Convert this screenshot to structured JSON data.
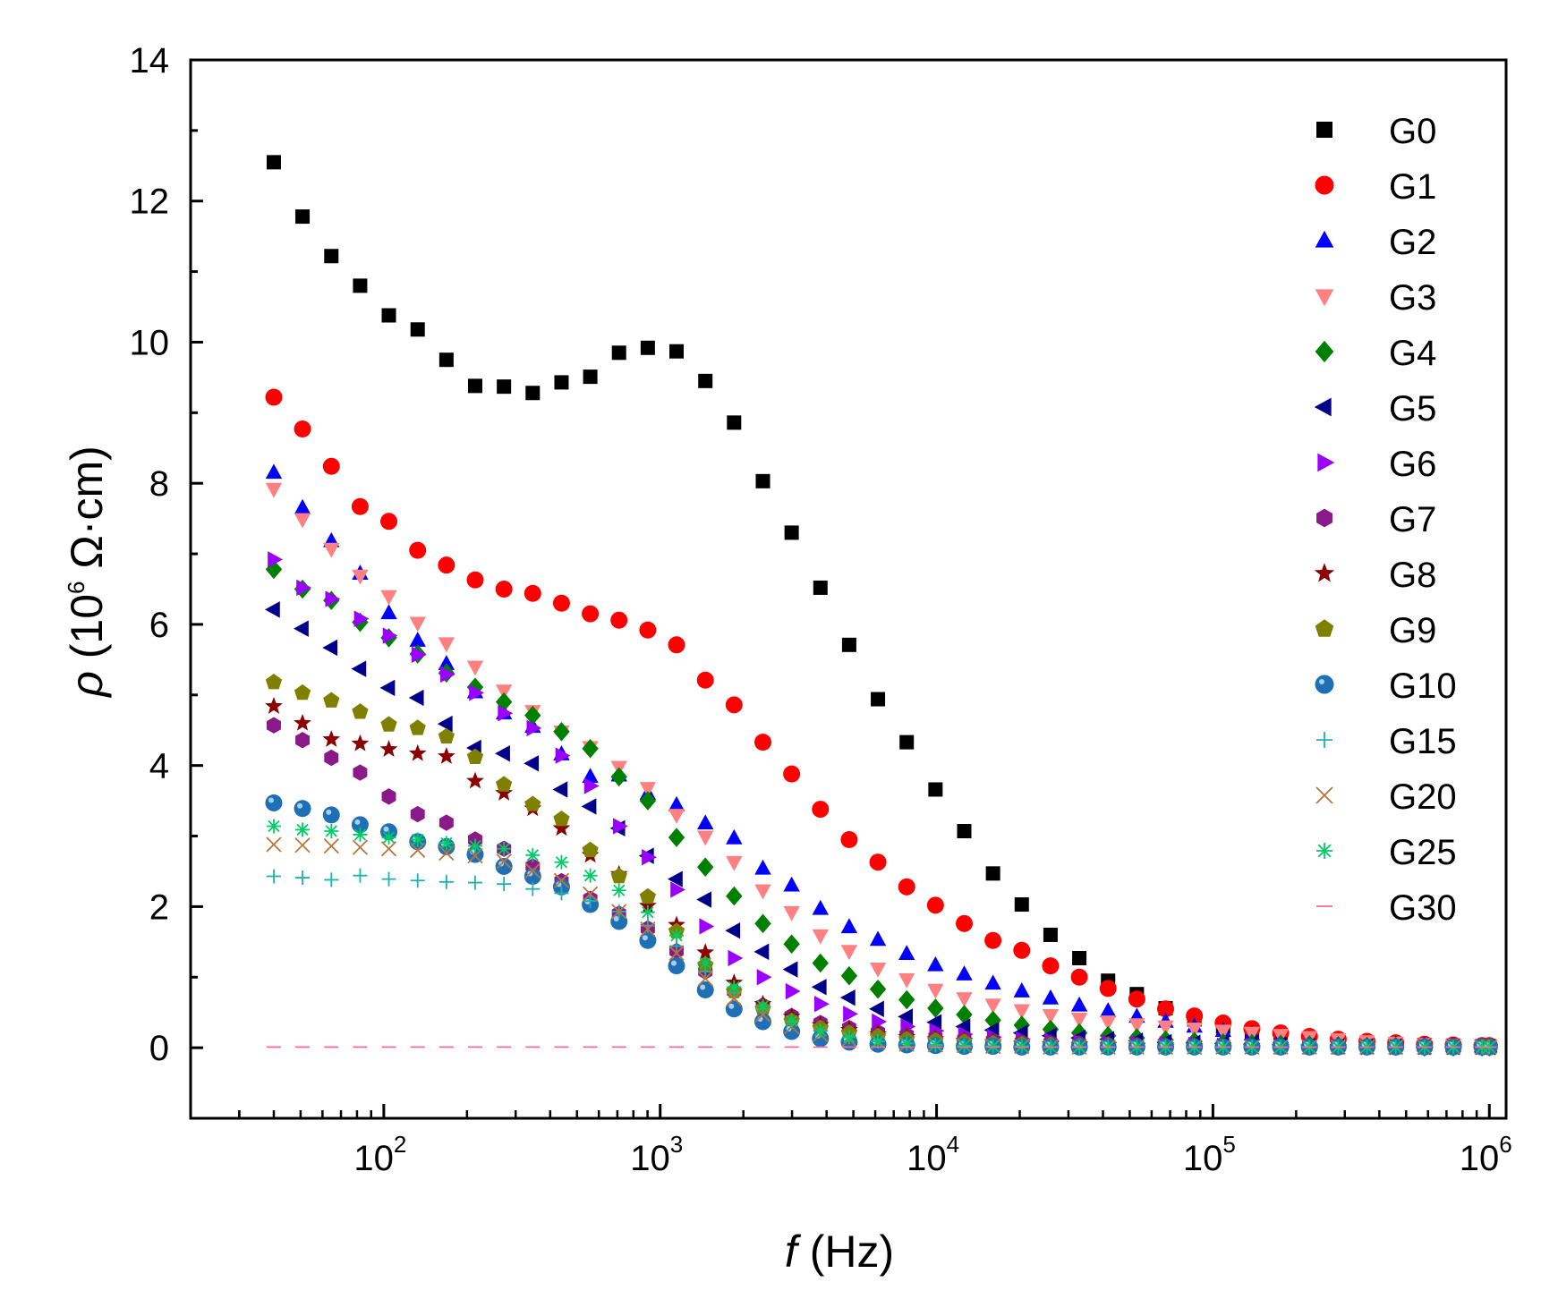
{
  "chart_data": {
    "type": "scatter",
    "title": "",
    "xlabel": {
      "symbol": "f",
      "unit": " (Hz)"
    },
    "ylabel": {
      "symbol": "ρ",
      "unit_pre": " (10",
      "unit_exp": "6",
      "unit_post": " Ω·cm)"
    },
    "x_scale": "log",
    "xlim": [
      20,
      1150000
    ],
    "ylim": [
      -1,
      14
    ],
    "y_ticks": [
      0,
      2,
      4,
      6,
      8,
      10,
      12,
      14
    ],
    "y_tick_labels": [
      "0",
      "2",
      "4",
      "6",
      "8",
      "10",
      "12",
      "14"
    ],
    "x_ticks": [
      {
        "value": 100,
        "base": "10",
        "exp": "2"
      },
      {
        "value": 1000,
        "base": "10",
        "exp": "3"
      },
      {
        "value": 10000,
        "base": "10",
        "exp": "4"
      },
      {
        "value": 100000,
        "base": "10",
        "exp": "5"
      },
      {
        "value": 1000000,
        "base": "10",
        "exp": "6"
      }
    ],
    "legend_position": "top-right",
    "x": [
      40,
      50.8,
      64.6,
      82.1,
      104.3,
      132.6,
      168.5,
      214.1,
      272.1,
      345.8,
      439.5,
      558.5,
      709.7,
      902,
      1146,
      1457,
      1851,
      2353,
      2990,
      3800,
      4829,
      6136,
      7798,
      9910,
      12594,
      16004,
      20338,
      25846,
      32845,
      41739,
      53042,
      67406,
      85660,
      108856,
      138334,
      175794,
      223400,
      283898,
      360775,
      458472,
      582626,
      740400,
      940900,
      1000000
    ],
    "series": [
      {
        "name": "G0",
        "color": "#000000",
        "marker": "square",
        "values": [
          12.55,
          11.78,
          11.22,
          10.8,
          10.38,
          10.18,
          9.75,
          9.38,
          9.37,
          9.28,
          9.43,
          9.51,
          9.85,
          9.92,
          9.87,
          9.45,
          8.86,
          8.03,
          7.3,
          6.52,
          5.71,
          4.94,
          4.33,
          3.66,
          3.07,
          2.47,
          2.03,
          1.6,
          1.27,
          0.95,
          0.76,
          0.56,
          0.4,
          0.3,
          0.22,
          0.16,
          0.12,
          0.09,
          0.07,
          0.05,
          0.04,
          0.03,
          0.02,
          0.02
        ]
      },
      {
        "name": "G1",
        "color": "#ff0000",
        "marker": "circle",
        "values": [
          9.22,
          8.77,
          8.24,
          7.67,
          7.46,
          7.05,
          6.84,
          6.63,
          6.5,
          6.44,
          6.3,
          6.15,
          6.06,
          5.92,
          5.71,
          5.21,
          4.86,
          4.33,
          3.88,
          3.38,
          2.95,
          2.63,
          2.28,
          2.02,
          1.76,
          1.52,
          1.38,
          1.16,
          1.0,
          0.84,
          0.69,
          0.55,
          0.45,
          0.35,
          0.27,
          0.21,
          0.16,
          0.12,
          0.09,
          0.07,
          0.05,
          0.04,
          0.03,
          0.03
        ]
      },
      {
        "name": "G2",
        "color": "#0000ff",
        "marker": "triangle-up",
        "values": [
          8.15,
          7.65,
          7.18,
          6.72,
          6.16,
          5.77,
          5.44,
          5.04,
          4.74,
          4.55,
          4.16,
          3.84,
          3.86,
          3.6,
          3.44,
          3.18,
          2.97,
          2.54,
          2.3,
          1.97,
          1.71,
          1.53,
          1.33,
          1.17,
          1.04,
          0.91,
          0.8,
          0.7,
          0.6,
          0.52,
          0.44,
          0.37,
          0.3,
          0.24,
          0.19,
          0.15,
          0.12,
          0.09,
          0.07,
          0.05,
          0.04,
          0.03,
          0.02,
          0.02
        ]
      },
      {
        "name": "G3",
        "color": "#ff8080",
        "marker": "triangle-down",
        "values": [
          7.92,
          7.49,
          7.07,
          6.69,
          6.4,
          6.02,
          5.73,
          5.4,
          5.06,
          4.77,
          4.48,
          4.26,
          3.98,
          3.68,
          3.3,
          2.99,
          2.63,
          2.23,
          1.92,
          1.59,
          1.37,
          1.12,
          0.97,
          0.82,
          0.7,
          0.61,
          0.53,
          0.46,
          0.41,
          0.37,
          0.33,
          0.3,
          0.27,
          0.24,
          0.21,
          0.18,
          0.15,
          0.12,
          0.09,
          0.07,
          0.05,
          0.04,
          0.03,
          0.03
        ]
      },
      {
        "name": "G4",
        "color": "#008000",
        "marker": "diamond",
        "values": [
          6.78,
          6.5,
          6.34,
          6.03,
          5.81,
          5.58,
          5.31,
          5.11,
          4.9,
          4.71,
          4.48,
          4.24,
          3.84,
          3.5,
          2.98,
          2.56,
          2.15,
          1.76,
          1.47,
          1.2,
          1.02,
          0.83,
          0.68,
          0.56,
          0.47,
          0.39,
          0.32,
          0.26,
          0.21,
          0.17,
          0.14,
          0.11,
          0.09,
          0.07,
          0.06,
          0.05,
          0.04,
          0.03,
          0.02,
          0.02,
          0.01,
          0.01,
          0.01,
          0.01
        ]
      },
      {
        "name": "G5",
        "color": "#00008b",
        "marker": "triangle-left",
        "values": [
          6.21,
          5.94,
          5.67,
          5.37,
          5.1,
          4.96,
          4.59,
          4.25,
          4.17,
          4.03,
          3.66,
          3.42,
          3.11,
          2.72,
          2.39,
          2.1,
          1.66,
          1.36,
          1.11,
          0.86,
          0.71,
          0.55,
          0.44,
          0.36,
          0.3,
          0.25,
          0.21,
          0.17,
          0.14,
          0.12,
          0.1,
          0.08,
          0.07,
          0.06,
          0.05,
          0.04,
          0.03,
          0.02,
          0.02,
          0.02,
          0.01,
          0.01,
          0.01,
          0.01
        ]
      },
      {
        "name": "G6",
        "color": "#9b00ff",
        "marker": "triangle-right",
        "values": [
          6.92,
          6.52,
          6.36,
          6.08,
          5.84,
          5.57,
          5.29,
          5.03,
          4.74,
          4.53,
          4.14,
          3.71,
          3.14,
          2.7,
          2.24,
          1.72,
          1.27,
          1.0,
          0.8,
          0.62,
          0.48,
          0.37,
          0.3,
          0.24,
          0.19,
          0.15,
          0.12,
          0.1,
          0.08,
          0.07,
          0.06,
          0.05,
          0.04,
          0.03,
          0.03,
          0.02,
          0.02,
          0.02,
          0.01,
          0.01,
          0.01,
          0.01,
          0.01,
          0.01
        ]
      },
      {
        "name": "G7",
        "color": "#8b1a89",
        "marker": "hexagon",
        "values": [
          4.57,
          4.36,
          4.11,
          3.9,
          3.56,
          3.31,
          3.19,
          2.95,
          2.82,
          2.57,
          2.36,
          2.11,
          1.9,
          1.69,
          1.37,
          1.08,
          0.8,
          0.6,
          0.45,
          0.35,
          0.28,
          0.22,
          0.18,
          0.15,
          0.12,
          0.1,
          0.08,
          0.07,
          0.06,
          0.05,
          0.04,
          0.03,
          0.03,
          0.02,
          0.02,
          0.02,
          0.01,
          0.01,
          0.01,
          0.01,
          0.01,
          0.01,
          0.01,
          0.01
        ]
      },
      {
        "name": "G8",
        "color": "#8b0000",
        "marker": "star",
        "values": [
          4.84,
          4.6,
          4.37,
          4.31,
          4.23,
          4.17,
          4.13,
          3.78,
          3.61,
          3.39,
          3.11,
          2.73,
          2.46,
          2.01,
          1.74,
          1.35,
          0.92,
          0.62,
          0.44,
          0.32,
          0.25,
          0.19,
          0.15,
          0.12,
          0.1,
          0.08,
          0.06,
          0.05,
          0.04,
          0.04,
          0.03,
          0.03,
          0.02,
          0.02,
          0.02,
          0.01,
          0.01,
          0.01,
          0.01,
          0.01,
          0.01,
          0.01,
          0.01,
          0.01
        ]
      },
      {
        "name": "G9",
        "color": "#808000",
        "marker": "pentagon",
        "values": [
          5.18,
          5.03,
          4.92,
          4.76,
          4.58,
          4.53,
          4.41,
          4.12,
          3.73,
          3.45,
          3.24,
          2.8,
          2.43,
          2.14,
          1.65,
          1.17,
          0.8,
          0.55,
          0.38,
          0.28,
          0.21,
          0.16,
          0.12,
          0.1,
          0.08,
          0.06,
          0.05,
          0.04,
          0.03,
          0.03,
          0.02,
          0.02,
          0.02,
          0.01,
          0.01,
          0.01,
          0.01,
          0.01,
          0.01,
          0.01,
          0.01,
          0.01,
          0.01,
          0.01
        ]
      },
      {
        "name": "G10",
        "color": "#1f6fb5",
        "marker": "sphere",
        "values": [
          3.47,
          3.39,
          3.3,
          3.16,
          3.06,
          2.92,
          2.85,
          2.74,
          2.57,
          2.43,
          2.28,
          2.03,
          1.79,
          1.52,
          1.16,
          0.82,
          0.55,
          0.37,
          0.23,
          0.13,
          0.08,
          0.05,
          0.04,
          0.03,
          0.02,
          0.02,
          0.01,
          0.01,
          0.01,
          0.01,
          0.01,
          0.01,
          0.01,
          0.01,
          0.01,
          0.01,
          0.01,
          0.01,
          0.01,
          0.01,
          0.01,
          0.01,
          0.01,
          0.01
        ]
      },
      {
        "name": "G15",
        "color": "#20b2aa",
        "marker": "plus",
        "values": [
          2.43,
          2.41,
          2.38,
          2.44,
          2.39,
          2.37,
          2.35,
          2.34,
          2.32,
          2.25,
          2.19,
          2.08,
          1.93,
          1.73,
          1.44,
          1.08,
          0.78,
          0.55,
          0.37,
          0.24,
          0.15,
          0.09,
          0.06,
          0.04,
          0.03,
          0.02,
          0.02,
          0.01,
          0.01,
          0.01,
          0.01,
          0.01,
          0.01,
          0.01,
          0.01,
          0.01,
          0.01,
          0.01,
          0.01,
          0.01,
          0.01,
          0.01,
          0.01,
          0.01
        ]
      },
      {
        "name": "G20",
        "color": "#b8763a",
        "marker": "cross",
        "values": [
          2.88,
          2.87,
          2.86,
          2.84,
          2.82,
          2.8,
          2.76,
          2.72,
          2.64,
          2.51,
          2.37,
          2.18,
          1.93,
          1.68,
          1.34,
          0.98,
          0.7,
          0.47,
          0.3,
          0.19,
          0.12,
          0.08,
          0.05,
          0.04,
          0.03,
          0.02,
          0.02,
          0.01,
          0.01,
          0.01,
          0.01,
          0.01,
          0.01,
          0.01,
          0.01,
          0.01,
          0.01,
          0.01,
          0.01,
          0.01,
          0.01,
          0.01,
          0.01,
          0.01
        ]
      },
      {
        "name": "G25",
        "color": "#00cc66",
        "marker": "asterisk",
        "values": [
          3.14,
          3.09,
          3.07,
          3.02,
          2.98,
          2.95,
          2.9,
          2.86,
          2.82,
          2.73,
          2.63,
          2.44,
          2.23,
          1.92,
          1.59,
          1.2,
          0.86,
          0.59,
          0.38,
          0.24,
          0.15,
          0.09,
          0.06,
          0.04,
          0.03,
          0.02,
          0.02,
          0.01,
          0.01,
          0.01,
          0.01,
          0.01,
          0.01,
          0.01,
          0.01,
          0.01,
          0.01,
          0.01,
          0.01,
          0.01,
          0.01,
          0.01,
          0.01,
          0.01
        ]
      },
      {
        "name": "G30",
        "color": "#ff6699",
        "marker": "dash",
        "values": [
          0.01,
          0.01,
          0.01,
          0.01,
          0.01,
          0.01,
          0.01,
          0.01,
          0.01,
          0.01,
          0.01,
          0.01,
          0.01,
          0.01,
          0.01,
          0.01,
          0.01,
          0.01,
          0.01,
          0.01,
          0.01,
          0.01,
          0.01,
          0.01,
          0.01,
          0.01,
          0.01,
          0.01,
          0.01,
          0.01,
          0.01,
          0.01,
          0.01,
          0.01,
          0.01,
          0.01,
          0.01,
          0.01,
          0.01,
          0.01,
          0.01,
          0.01,
          0.01,
          0.01
        ]
      }
    ]
  }
}
